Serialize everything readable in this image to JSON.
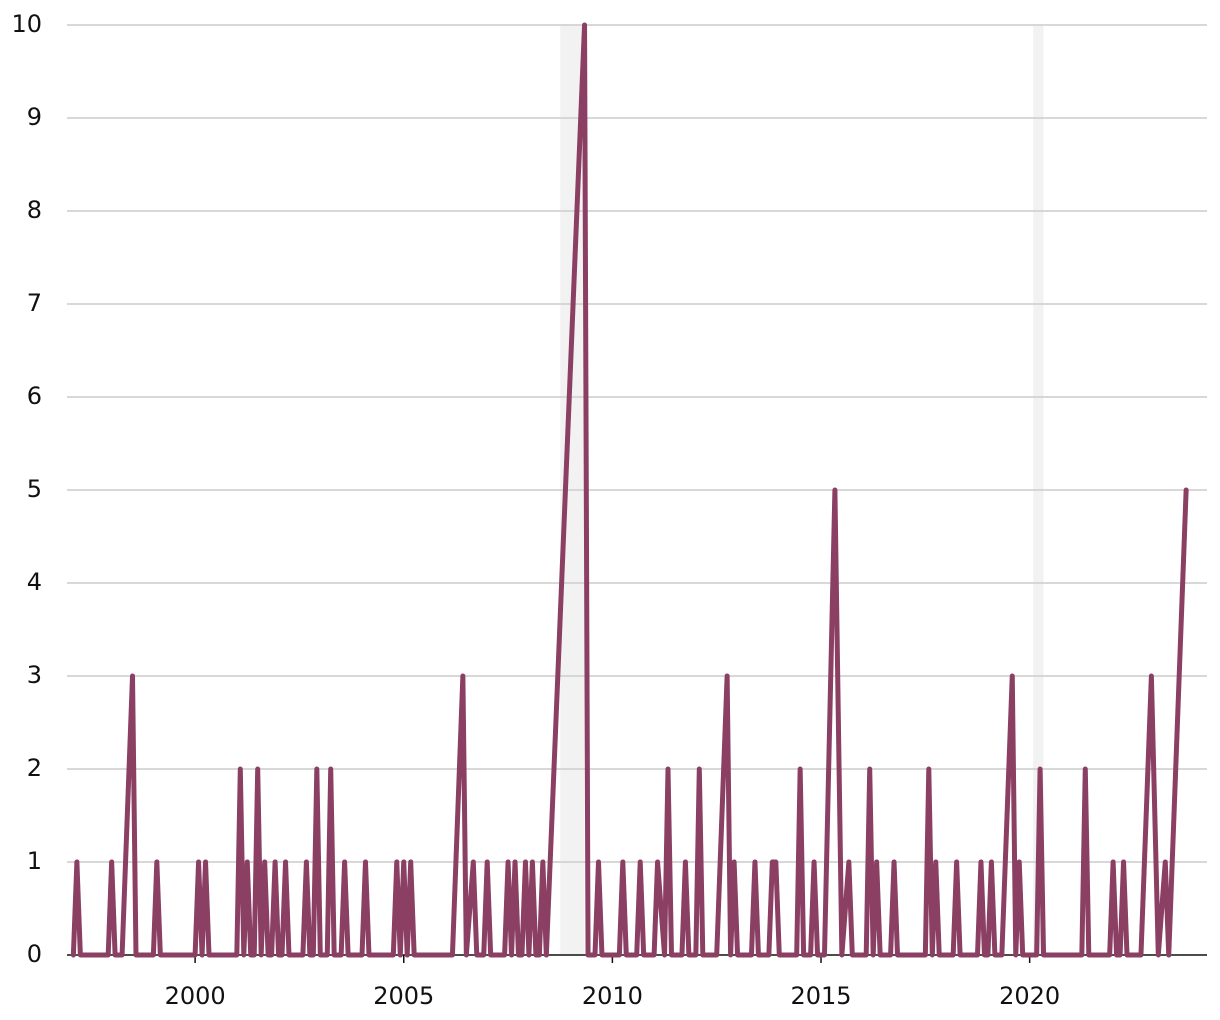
{
  "chart_data": {
    "type": "line",
    "x": [
      1997.083,
      1997.167,
      1997.25,
      1997.917,
      1998,
      1998.083,
      1998.25,
      1998.5,
      1998.583,
      1999,
      1999.083,
      1999.167,
      2000,
      2000.083,
      2000.167,
      2000.25,
      2000.333,
      2001,
      2001.083,
      2001.167,
      2001.25,
      2001.333,
      2001.417,
      2001.5,
      2001.583,
      2001.667,
      2001.75,
      2001.833,
      2001.917,
      2002,
      2002.083,
      2002.167,
      2002.25,
      2002.583,
      2002.667,
      2002.75,
      2002.833,
      2002.917,
      2003,
      2003.167,
      2003.25,
      2003.333,
      2003.5,
      2003.583,
      2003.667,
      2004,
      2004.083,
      2004.167,
      2004.75,
      2004.833,
      2004.917,
      2005,
      2005.083,
      2005.167,
      2005.25,
      2006.167,
      2006.417,
      2006.5,
      2006.667,
      2006.75,
      2006.917,
      2007,
      2007.083,
      2007.417,
      2007.5,
      2007.583,
      2007.667,
      2007.75,
      2007.833,
      2007.917,
      2008,
      2008.083,
      2008.167,
      2008.25,
      2008.333,
      2008.417,
      2009.333,
      2009.417,
      2009.583,
      2009.667,
      2009.75,
      2010.167,
      2010.25,
      2010.333,
      2010.583,
      2010.667,
      2010.75,
      2011,
      2011.083,
      2011.25,
      2011.333,
      2011.417,
      2011.667,
      2011.75,
      2011.833,
      2012,
      2012.083,
      2012.167,
      2012.5,
      2012.75,
      2012.833,
      2012.917,
      2013,
      2013.333,
      2013.417,
      2013.5,
      2013.75,
      2013.833,
      2013.917,
      2014,
      2014.417,
      2014.5,
      2014.583,
      2014.75,
      2014.833,
      2014.917,
      2015.083,
      2015.333,
      2015.5,
      2015.667,
      2015.75,
      2016.083,
      2016.167,
      2016.25,
      2016.333,
      2016.417,
      2016.667,
      2016.75,
      2016.833,
      2017.5,
      2017.583,
      2017.667,
      2017.75,
      2017.833,
      2018.167,
      2018.25,
      2018.333,
      2018.75,
      2018.833,
      2018.917,
      2019,
      2019.083,
      2019.167,
      2019.333,
      2019.583,
      2019.667,
      2019.75,
      2019.833,
      2020.167,
      2020.25,
      2020.333,
      2021.25,
      2021.333,
      2021.417,
      2021.917,
      2022,
      2022.083,
      2022.167,
      2022.25,
      2022.333,
      2022.667,
      2022.917,
      2023.083,
      2023.25,
      2023.333,
      2023.75
    ],
    "values": [
      0,
      1,
      0,
      0,
      1,
      0,
      0,
      3,
      0,
      0,
      1,
      0,
      0,
      1,
      0,
      1,
      0,
      0,
      2,
      0,
      1,
      0,
      0,
      2,
      0,
      1,
      0,
      0,
      1,
      0,
      0,
      1,
      0,
      0,
      1,
      0,
      0,
      2,
      0,
      0,
      2,
      0,
      0,
      1,
      0,
      0,
      1,
      0,
      0,
      1,
      0,
      1,
      0,
      1,
      0,
      0,
      3,
      0,
      1,
      0,
      0,
      1,
      0,
      0,
      1,
      0,
      1,
      0,
      0,
      1,
      0,
      1,
      0,
      0,
      1,
      0,
      10,
      0,
      0,
      1,
      0,
      0,
      1,
      0,
      0,
      1,
      0,
      0,
      1,
      0,
      2,
      0,
      0,
      1,
      0,
      0,
      2,
      0,
      0,
      3,
      0,
      1,
      0,
      0,
      1,
      0,
      0,
      1,
      1,
      0,
      0,
      2,
      0,
      0,
      1,
      0,
      0,
      5,
      0,
      1,
      0,
      0,
      2,
      0,
      1,
      0,
      0,
      1,
      0,
      0,
      2,
      0,
      1,
      0,
      0,
      1,
      0,
      0,
      1,
      0,
      0,
      1,
      0,
      0,
      3,
      0,
      1,
      0,
      0,
      2,
      0,
      0,
      2,
      0,
      0,
      1,
      0,
      0,
      1,
      0,
      0,
      3,
      0,
      1,
      0,
      5
    ],
    "color": "#8a3f63",
    "shaded": [
      [
        2008.75,
        2009.333
      ],
      [
        2020.083,
        2020.333
      ]
    ],
    "shade_color": "#f2f2f2",
    "xlim": [
      1996.93,
      2024.25
    ],
    "xticks": [
      2000,
      2005,
      2010,
      2015,
      2020
    ],
    "ylim": [
      0,
      10
    ],
    "yticks": [
      0,
      1,
      2,
      3,
      4,
      5,
      6,
      7,
      8,
      9,
      10
    ],
    "grid": true
  }
}
